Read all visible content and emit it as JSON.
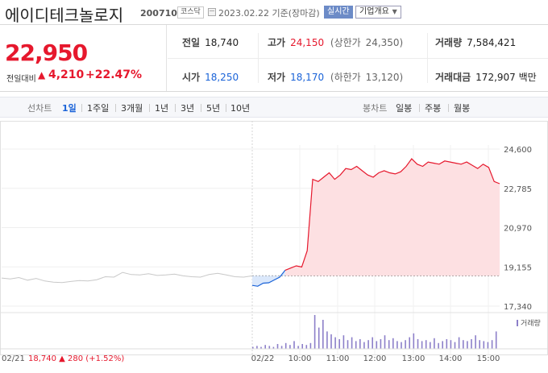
{
  "header": {
    "title": "에이디테크놀로지",
    "code": "200710",
    "market": "코스닥",
    "date": "2023.02.22",
    "basis": "기준(장마감)",
    "realtime_label": "실시간",
    "company_info_label": "기업개요",
    "calendar_icon": "calendar-icon",
    "chevron_icon": "chevron-down-icon"
  },
  "quote": {
    "price": "22,950",
    "change_label": "전일대비",
    "change_arrow": "▲",
    "change_amount": "4,210",
    "change_percent": "+22.47%"
  },
  "stats": {
    "prev_close": {
      "label": "전일",
      "value": "18,740"
    },
    "high": {
      "label": "고가",
      "value": "24,150",
      "limit_label": "(상한가",
      "limit_value": "24,350)"
    },
    "volume": {
      "label": "거래량",
      "value": "7,584,421"
    },
    "open": {
      "label": "시가",
      "value": "18,250"
    },
    "low": {
      "label": "저가",
      "value": "18,170",
      "limit_label": "(하한가",
      "limit_value": "13,120)"
    },
    "amount": {
      "label": "거래대금",
      "value": "172,907",
      "unit": "백만"
    }
  },
  "tabs": {
    "line_label": "선차트",
    "line_tabs": [
      "1일",
      "1주일",
      "3개월",
      "1년",
      "3년",
      "5년",
      "10년"
    ],
    "active_index": 0,
    "candle_label": "봉차트",
    "candle_tabs": [
      "일봉",
      "주봉",
      "월봉"
    ]
  },
  "chart_data": {
    "type": "line",
    "y_ticks": [
      "24,600",
      "22,785",
      "20,970",
      "19,155",
      "17,340"
    ],
    "ylim": [
      17340,
      24600
    ],
    "reference_line": 18740,
    "x_labels": [
      "02/21",
      "02/22",
      "10:00",
      "11:00",
      "12:00",
      "13:00",
      "14:00",
      "15:00"
    ],
    "prev_day_series": [
      18640,
      18600,
      18660,
      18540,
      18620,
      18500,
      18450,
      18430,
      18480,
      18520,
      18500,
      18560,
      18700,
      18680,
      18900,
      18800,
      18780,
      18840,
      18760,
      18780,
      18820,
      18740,
      18700,
      18680,
      18800,
      18860,
      18780,
      18700,
      18680,
      18740
    ],
    "today_series": [
      18300,
      18260,
      18400,
      18420,
      18550,
      18680,
      19000,
      19100,
      19200,
      19150,
      19900,
      23200,
      23100,
      23300,
      23500,
      23200,
      23400,
      23700,
      23650,
      23800,
      23600,
      23400,
      23300,
      23500,
      23600,
      23500,
      23450,
      23550,
      23800,
      24150,
      23900,
      23800,
      24000,
      23950,
      23900,
      24050,
      24000,
      23950,
      23900,
      24000,
      23850,
      23700,
      23900,
      23750,
      23100,
      23000
    ],
    "prev_day_last": {
      "date": "02/21",
      "price": "18,740",
      "arrow": "▲",
      "change": "280",
      "percent": "(+1.52%)"
    },
    "volume_legend": "거래량",
    "volume_bars": [
      2,
      3,
      2,
      4,
      3,
      2,
      5,
      3,
      6,
      4,
      8,
      3,
      5,
      4,
      6,
      35,
      22,
      30,
      18,
      15,
      12,
      10,
      14,
      9,
      12,
      8,
      10,
      7,
      9,
      12,
      8,
      10,
      14,
      9,
      11,
      8,
      7,
      9,
      12,
      16,
      10,
      8,
      9,
      7,
      11,
      6,
      8,
      10,
      9,
      7,
      12,
      9,
      8,
      10,
      14,
      9,
      8,
      7,
      9,
      18
    ],
    "colors": {
      "up": "#e6182d",
      "down": "#1a63d8",
      "prev": "#c8c8c8",
      "volume": "#8c7fc9"
    }
  }
}
